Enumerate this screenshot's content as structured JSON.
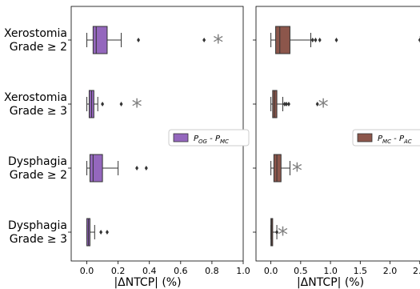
{
  "chart_data": [
    {
      "type": "boxplot",
      "orientation": "horizontal",
      "categories": [
        "Xerostomia\nGrade ≥ 2",
        "Xerostomia\nGrade ≥ 3",
        "Dysphagia\nGrade ≥ 2",
        "Dysphagia\nGrade ≥ 3"
      ],
      "xlabel": "|ΔNTCP| (%)",
      "xlim": [
        -0.1,
        1.0
      ],
      "xticks": [
        0.0,
        0.2,
        0.4,
        0.6,
        0.8,
        1.0
      ],
      "xtick_labels": [
        "0.0",
        "0.2",
        "0.4",
        "0.6",
        "0.8",
        "1.0"
      ],
      "color": "#9467bd",
      "legend": {
        "label_main": "P",
        "label_sub1": "OG",
        "label_sep": " - ",
        "label_sub2": "MC",
        "position": "right"
      },
      "series": [
        {
          "whislo": 0.0,
          "q1": 0.04,
          "med": 0.06,
          "q3": 0.13,
          "whishi": 0.22,
          "fliers": [
            0.33,
            0.75
          ],
          "mean": 0.84
        },
        {
          "whislo": 0.0,
          "q1": 0.015,
          "med": 0.03,
          "q3": 0.045,
          "whishi": 0.07,
          "fliers": [
            0.1,
            0.22
          ],
          "mean": 0.32
        },
        {
          "whislo": 0.0,
          "q1": 0.02,
          "med": 0.04,
          "q3": 0.1,
          "whishi": 0.2,
          "fliers": [
            0.32,
            0.38
          ],
          "mean": null
        },
        {
          "whislo": 0.0,
          "q1": 0.0,
          "med": 0.01,
          "q3": 0.02,
          "whishi": 0.05,
          "fliers": [
            0.09,
            0.13
          ],
          "mean": null
        }
      ]
    },
    {
      "type": "boxplot",
      "orientation": "horizontal",
      "categories": [
        "Xerostomia\nGrade ≥ 2",
        "Xerostomia\nGrade ≥ 3",
        "Dysphagia\nGrade ≥ 2",
        "Dysphagia\nGrade ≥ 3"
      ],
      "xlabel": "|ΔNTCP| (%)",
      "xlim": [
        -0.25,
        2.57
      ],
      "xticks": [
        0.0,
        0.5,
        1.0,
        1.5,
        2.0,
        2.5
      ],
      "xtick_labels": [
        "0.0",
        "0.5",
        "1.0",
        "1.5",
        "2.0",
        "2.5"
      ],
      "color": "#8c564b",
      "legend": {
        "label_main": "P",
        "label_sub1": "MC",
        "label_sep": " - ",
        "label_sub2": "AC",
        "position": "right"
      },
      "series": [
        {
          "whislo": 0.0,
          "q1": 0.08,
          "med": 0.15,
          "q3": 0.32,
          "whishi": 0.67,
          "fliers": [
            0.7,
            0.75,
            0.82,
            1.1,
            2.5
          ],
          "mean": 2.57
        },
        {
          "whislo": 0.0,
          "q1": 0.03,
          "med": 0.06,
          "q3": 0.1,
          "whishi": 0.2,
          "fliers": [
            0.23,
            0.26,
            0.3,
            0.78
          ],
          "mean": 0.88
        },
        {
          "whislo": 0.0,
          "q1": 0.05,
          "med": 0.1,
          "q3": 0.17,
          "whishi": 0.32,
          "fliers": [],
          "mean": 0.44
        },
        {
          "whislo": 0.0,
          "q1": 0.0,
          "med": 0.01,
          "q3": 0.03,
          "whishi": 0.1,
          "fliers": [
            0.1
          ],
          "mean": 0.2
        }
      ]
    }
  ]
}
